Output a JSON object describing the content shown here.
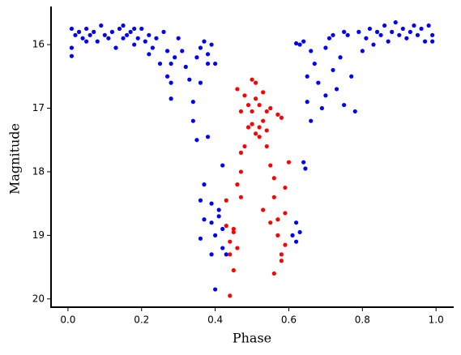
{
  "chart_data": {
    "type": "scatter",
    "xlabel": "Phase",
    "ylabel": "Magnitude",
    "xlim": [
      -0.046,
      1.048
    ],
    "ylim": [
      15.4,
      20.13
    ],
    "y_inverted": true,
    "xticks": [
      {
        "value": 0,
        "label": "0.0"
      },
      0.2,
      0.4,
      0.6,
      0.8,
      {
        "value": 1,
        "label": "1.0"
      }
    ],
    "yticks": [
      16,
      17,
      18,
      19,
      20
    ],
    "grid": false,
    "series": [
      {
        "name": null,
        "color": "#0000ff",
        "x": [
          0.01,
          0.01,
          0.01,
          0.02,
          0.03,
          0.04,
          0.05,
          0.06,
          0.07,
          0.08,
          0.09,
          0.1,
          0.11,
          0.12,
          0.13,
          0.14,
          0.15,
          0.16,
          0.17,
          0.18,
          0.19,
          0.2,
          0.21,
          0.22,
          0.23,
          0.24,
          0.25,
          0.26,
          0.27,
          0.27,
          0.28,
          0.28,
          0.28,
          0.29,
          0.3,
          0.31,
          0.32,
          0.33,
          0.34,
          0.34,
          0.35,
          0.35,
          0.36,
          0.36,
          0.37,
          0.37,
          0.36,
          0.38,
          0.38,
          0.39,
          0.39,
          0.4,
          0.4,
          0.39,
          0.36,
          0.37,
          0.41,
          0.42,
          0.42,
          0.43,
          0.41,
          0.42,
          0.4,
          0.39,
          0.38,
          0.61,
          0.62,
          0.63,
          0.62,
          0.64,
          0.645,
          0.62,
          0.63,
          0.64,
          0.65,
          0.65,
          0.66,
          0.66,
          0.67,
          0.68,
          0.69,
          0.7,
          0.7,
          0.71,
          0.72,
          0.73,
          0.74,
          0.75,
          0.76,
          0.77,
          0.78,
          0.79,
          0.8,
          0.81,
          0.82,
          0.83,
          0.84,
          0.85,
          0.86,
          0.87,
          0.88,
          0.89,
          0.9,
          0.91,
          0.92,
          0.93,
          0.94,
          0.95,
          0.96,
          0.97,
          0.98,
          0.99,
          0.99,
          0.72,
          0.75,
          0.05,
          0.15,
          0.22,
          0.18
        ],
        "values": [
          15.75,
          16.05,
          16.18,
          15.85,
          15.8,
          15.9,
          15.75,
          15.85,
          15.8,
          15.95,
          15.7,
          15.85,
          15.9,
          15.8,
          16.05,
          15.75,
          15.9,
          15.85,
          15.8,
          16.0,
          15.9,
          15.75,
          15.95,
          15.85,
          16.05,
          15.9,
          16.3,
          15.8,
          16.1,
          16.5,
          16.3,
          16.6,
          16.85,
          16.2,
          15.9,
          16.1,
          16.35,
          16.55,
          16.9,
          17.2,
          16.2,
          17.5,
          16.05,
          16.6,
          15.95,
          18.2,
          18.45,
          17.45,
          16.3,
          18.5,
          18.8,
          19.0,
          19.85,
          19.3,
          19.05,
          18.75,
          18.7,
          18.9,
          19.2,
          19.3,
          18.6,
          17.9,
          16.3,
          16.0,
          16.15,
          19.0,
          18.8,
          18.95,
          19.1,
          17.85,
          17.95,
          15.98,
          16.0,
          15.95,
          16.5,
          16.9,
          17.2,
          16.1,
          16.3,
          16.6,
          17.0,
          16.05,
          16.8,
          15.9,
          16.4,
          16.7,
          16.2,
          16.95,
          15.85,
          16.5,
          17.05,
          15.8,
          16.1,
          15.9,
          15.75,
          16.0,
          15.8,
          15.85,
          15.7,
          15.95,
          15.8,
          15.65,
          15.85,
          15.75,
          15.9,
          15.8,
          15.7,
          15.85,
          15.75,
          15.95,
          15.7,
          15.85,
          15.95,
          15.85,
          15.8,
          15.95,
          15.7,
          16.15,
          15.75
        ]
      },
      {
        "name": null,
        "color": "#ff0000",
        "x": [
          0.44,
          0.45,
          0.44,
          0.43,
          0.43,
          0.45,
          0.46,
          0.46,
          0.47,
          0.47,
          0.47,
          0.48,
          0.46,
          0.49,
          0.49,
          0.5,
          0.5,
          0.51,
          0.51,
          0.52,
          0.52,
          0.53,
          0.53,
          0.54,
          0.54,
          0.55,
          0.55,
          0.56,
          0.56,
          0.57,
          0.57,
          0.58,
          0.58,
          0.59,
          0.59,
          0.59,
          0.6,
          0.58,
          0.57,
          0.56,
          0.53,
          0.55,
          0.48,
          0.47,
          0.44,
          0.45,
          0.52,
          0.5,
          0.51,
          0.54
        ],
        "values": [
          19.95,
          19.55,
          19.1,
          18.85,
          18.45,
          18.9,
          19.2,
          18.2,
          18.4,
          17.7,
          17.05,
          16.8,
          16.7,
          17.3,
          16.95,
          16.55,
          17.05,
          16.6,
          17.4,
          17.3,
          16.95,
          17.2,
          16.75,
          17.35,
          17.6,
          17.0,
          17.9,
          18.1,
          18.4,
          18.75,
          19.0,
          19.3,
          19.4,
          19.15,
          18.65,
          18.25,
          17.85,
          17.15,
          17.1,
          19.6,
          18.6,
          18.8,
          17.6,
          18.0,
          19.3,
          18.95,
          17.45,
          17.25,
          16.85,
          17.05
        ]
      }
    ]
  }
}
